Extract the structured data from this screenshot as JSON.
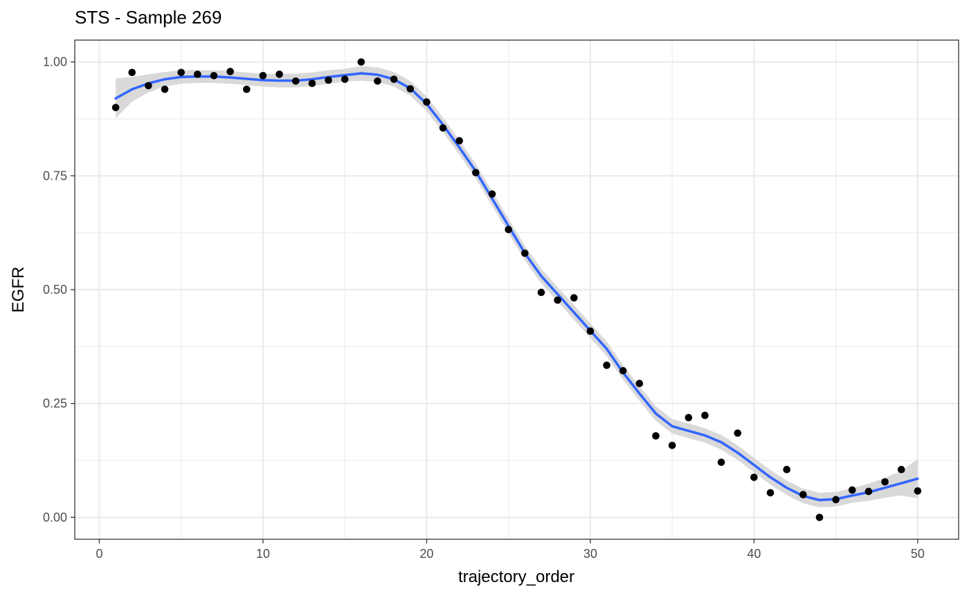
{
  "chart_data": {
    "type": "scatter",
    "title": "STS - Sample 269",
    "xlabel": "trajectory_order",
    "ylabel": "EGFR",
    "xlim": [
      -1.5,
      52.5
    ],
    "ylim": [
      -0.048,
      1.048
    ],
    "x_ticks": [
      0,
      10,
      20,
      30,
      40,
      50
    ],
    "x_tick_labels": [
      "0",
      "10",
      "20",
      "30",
      "40",
      "50"
    ],
    "y_ticks": [
      0,
      0.25,
      0.5,
      0.75,
      1.0
    ],
    "y_tick_labels": [
      "0.00",
      "0.25",
      "0.50",
      "0.75",
      "1.00"
    ],
    "grid": true,
    "colors": {
      "points": "#000000",
      "smooth": "#3366FF",
      "ribbon": "#D9D9D9",
      "grid": "#EBEBEB",
      "panel_border": "#333333"
    },
    "series": [
      {
        "kind": "points",
        "x": [
          1,
          2,
          3,
          4,
          5,
          6,
          7,
          8,
          9,
          10,
          11,
          12,
          13,
          14,
          15,
          16,
          17,
          18,
          19,
          20,
          21,
          22,
          23,
          24,
          25,
          26,
          27,
          28,
          29,
          30,
          31,
          32,
          33,
          34,
          35,
          36,
          37,
          38,
          39,
          40,
          41,
          42,
          43,
          44,
          45,
          46,
          47,
          48,
          49,
          50
        ],
        "y": [
          0.9,
          0.977,
          0.948,
          0.94,
          0.977,
          0.973,
          0.97,
          0.979,
          0.94,
          0.97,
          0.973,
          0.958,
          0.953,
          0.96,
          0.962,
          1.0,
          0.958,
          0.962,
          0.941,
          0.912,
          0.855,
          0.827,
          0.757,
          0.71,
          0.632,
          0.58,
          0.494,
          0.477,
          0.482,
          0.409,
          0.334,
          0.322,
          0.294,
          0.179,
          0.158,
          0.219,
          0.224,
          0.121,
          0.185,
          0.088,
          0.054,
          0.105,
          0.05,
          0.0,
          0.039,
          0.06,
          0.057,
          0.078,
          0.105,
          0.058
        ]
      },
      {
        "kind": "smooth",
        "x": [
          1,
          2,
          3,
          4,
          5,
          6,
          7,
          8,
          9,
          10,
          11,
          12,
          13,
          14,
          15,
          16,
          17,
          18,
          19,
          20,
          21,
          22,
          23,
          24,
          25,
          26,
          27,
          28,
          29,
          30,
          31,
          32,
          33,
          34,
          35,
          36,
          37,
          38,
          39,
          40,
          41,
          42,
          43,
          44,
          45,
          46,
          47,
          48,
          49,
          50
        ],
        "y": [
          0.92,
          0.94,
          0.953,
          0.962,
          0.967,
          0.968,
          0.968,
          0.966,
          0.963,
          0.96,
          0.959,
          0.959,
          0.962,
          0.967,
          0.971,
          0.975,
          0.972,
          0.962,
          0.942,
          0.908,
          0.862,
          0.812,
          0.76,
          0.7,
          0.64,
          0.58,
          0.53,
          0.49,
          0.45,
          0.41,
          0.37,
          0.318,
          0.272,
          0.228,
          0.2,
          0.19,
          0.18,
          0.165,
          0.142,
          0.115,
          0.088,
          0.065,
          0.047,
          0.038,
          0.04,
          0.048,
          0.055,
          0.065,
          0.075,
          0.085
        ],
        "se_lower": [
          0.876,
          0.913,
          0.933,
          0.946,
          0.952,
          0.954,
          0.954,
          0.952,
          0.949,
          0.946,
          0.944,
          0.944,
          0.947,
          0.952,
          0.957,
          0.959,
          0.956,
          0.946,
          0.926,
          0.892,
          0.846,
          0.796,
          0.744,
          0.684,
          0.624,
          0.564,
          0.514,
          0.474,
          0.434,
          0.394,
          0.354,
          0.302,
          0.256,
          0.212,
          0.184,
          0.174,
          0.164,
          0.149,
          0.126,
          0.099,
          0.072,
          0.049,
          0.031,
          0.022,
          0.024,
          0.032,
          0.036,
          0.043,
          0.048,
          0.042
        ],
        "se_upper": [
          0.964,
          0.967,
          0.973,
          0.978,
          0.982,
          0.982,
          0.982,
          0.98,
          0.977,
          0.974,
          0.974,
          0.974,
          0.977,
          0.982,
          0.985,
          0.991,
          0.988,
          0.978,
          0.958,
          0.924,
          0.878,
          0.828,
          0.776,
          0.716,
          0.656,
          0.596,
          0.546,
          0.506,
          0.466,
          0.426,
          0.386,
          0.334,
          0.288,
          0.244,
          0.216,
          0.206,
          0.196,
          0.181,
          0.158,
          0.131,
          0.104,
          0.081,
          0.063,
          0.054,
          0.056,
          0.064,
          0.074,
          0.087,
          0.102,
          0.128
        ]
      }
    ]
  }
}
